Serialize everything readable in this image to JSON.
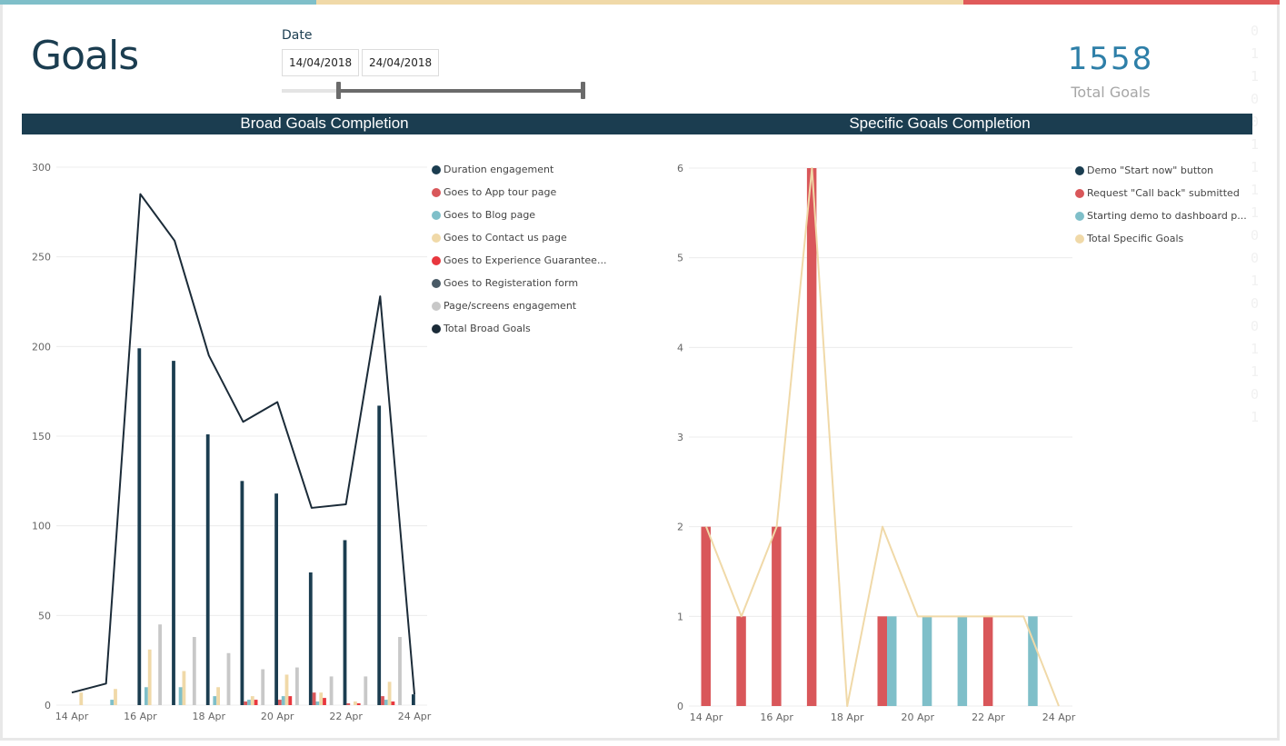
{
  "top_bar_colors": [
    "#7fbfc9",
    "#f0d9a8",
    "#e05a5a"
  ],
  "page_title": "Goals",
  "date_filter": {
    "label": "Date",
    "start": "14/04/2018",
    "end": "24/04/2018"
  },
  "kpi": {
    "value": "1558",
    "label": "Total Goals"
  },
  "decor_digits": [
    "0 1",
    "1 0",
    "0 1",
    "1 1",
    "1 0",
    "0 1",
    "0 0",
    "1 1",
    "0 1"
  ],
  "chart_data": [
    {
      "type": "bar",
      "title": "Broad Goals Completion",
      "categories": [
        "14 Apr",
        "15 Apr",
        "16 Apr",
        "17 Apr",
        "18 Apr",
        "19 Apr",
        "20 Apr",
        "21 Apr",
        "22 Apr",
        "23 Apr",
        "24 Apr"
      ],
      "x_tick_labels": [
        "14 Apr",
        "16 Apr",
        "18 Apr",
        "20 Apr",
        "22 Apr",
        "24 Apr"
      ],
      "ylim": [
        0,
        300
      ],
      "y_ticks": [
        0,
        50,
        100,
        150,
        200,
        250,
        300
      ],
      "grid": true,
      "legend_position": "right",
      "series": [
        {
          "name": "Duration engagement",
          "color": "#1b3d50",
          "values": [
            0,
            0,
            199,
            192,
            151,
            125,
            118,
            74,
            92,
            167,
            6
          ]
        },
        {
          "name": "Goes to App tour page",
          "color": "#d9575a",
          "values": [
            0,
            0,
            0,
            0,
            0,
            2,
            3,
            7,
            1,
            5,
            0
          ]
        },
        {
          "name": "Goes to Blog page",
          "color": "#7fbfc9",
          "values": [
            0,
            3,
            10,
            10,
            5,
            3,
            5,
            2,
            0,
            3,
            0
          ]
        },
        {
          "name": "Goes to Contact us page",
          "color": "#f0d9a8",
          "values": [
            7,
            9,
            31,
            19,
            10,
            5,
            17,
            7,
            2,
            13,
            0
          ]
        },
        {
          "name": "Goes to Experience Guarantee...",
          "color": "#e8373e",
          "values": [
            0,
            0,
            0,
            0,
            0,
            3,
            5,
            4,
            1,
            2,
            0
          ]
        },
        {
          "name": "Goes to Registeration form",
          "color": "#495a66",
          "values": [
            0,
            0,
            0,
            0,
            0,
            0,
            0,
            0,
            0,
            0,
            0
          ]
        },
        {
          "name": "Page/screens engagement",
          "color": "#c8c8c8",
          "values": [
            0,
            0,
            45,
            38,
            29,
            20,
            21,
            16,
            16,
            38,
            0
          ]
        }
      ],
      "line": {
        "name": "Total Broad Goals",
        "color": "#1b2b38",
        "values": [
          7,
          12,
          285,
          259,
          195,
          158,
          169,
          110,
          112,
          228,
          6
        ]
      }
    },
    {
      "type": "bar",
      "title": "Specific Goals Completion",
      "categories": [
        "14 Apr",
        "15 Apr",
        "16 Apr",
        "17 Apr",
        "18 Apr",
        "19 Apr",
        "20 Apr",
        "21 Apr",
        "22 Apr",
        "23 Apr",
        "24 Apr"
      ],
      "x_tick_labels": [
        "14 Apr",
        "16 Apr",
        "18 Apr",
        "20 Apr",
        "22 Apr",
        "24 Apr"
      ],
      "ylim": [
        0,
        6
      ],
      "y_ticks": [
        0,
        1,
        2,
        3,
        4,
        5,
        6
      ],
      "grid": true,
      "legend_position": "right",
      "series": [
        {
          "name": "Demo \"Start now\" button",
          "color": "#1b3d50",
          "values": [
            0,
            0,
            0,
            0,
            0,
            0,
            0,
            0,
            0,
            0,
            0
          ]
        },
        {
          "name": "Request \"Call back\" submitted",
          "color": "#d9575a",
          "values": [
            2,
            1,
            2,
            6,
            0,
            1,
            0,
            0,
            1,
            0,
            0
          ]
        },
        {
          "name": "Starting demo to dashboard p...",
          "color": "#7fbfc9",
          "values": [
            0,
            0,
            0,
            0,
            0,
            1,
            1,
            1,
            0,
            1,
            0
          ]
        }
      ],
      "line": {
        "name": "Total Specific Goals",
        "color": "#f0d9a8",
        "values": [
          2,
          1,
          2,
          6,
          0,
          2,
          1,
          1,
          1,
          1,
          0
        ]
      }
    }
  ]
}
